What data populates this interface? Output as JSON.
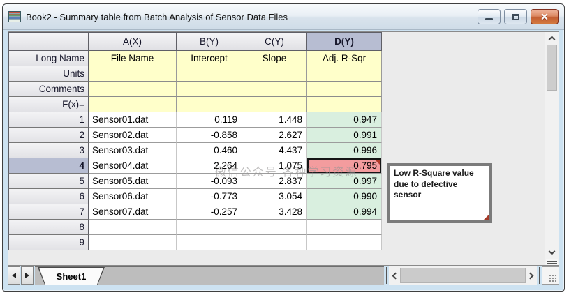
{
  "window": {
    "title": "Book2 - Summary table from Batch Analysis of Sensor Data Files",
    "control_icons": [
      "minimize",
      "restore",
      "close"
    ],
    "close_glyph": "✕"
  },
  "table": {
    "column_headers": [
      "A(X)",
      "B(Y)",
      "C(Y)",
      "D(Y)"
    ],
    "selected_column": "D(Y)",
    "row_label_header": "",
    "label_rows": [
      {
        "label": "Long Name",
        "values": [
          "File Name",
          "Intercept",
          "Slope",
          "Adj. R-Sqr"
        ]
      },
      {
        "label": "Units",
        "values": [
          "",
          "",
          "",
          ""
        ]
      },
      {
        "label": "Comments",
        "values": [
          "",
          "",
          "",
          ""
        ]
      },
      {
        "label": "F(x)=",
        "values": [
          "",
          "",
          "",
          ""
        ]
      }
    ],
    "data_rows": [
      {
        "row": "1",
        "values": [
          "Sensor01.dat",
          "0.119",
          "1.448",
          "0.947"
        ],
        "selected": false
      },
      {
        "row": "2",
        "values": [
          "Sensor02.dat",
          "-0.858",
          "2.627",
          "0.991"
        ],
        "selected": false
      },
      {
        "row": "3",
        "values": [
          "Sensor03.dat",
          "0.460",
          "4.437",
          "0.996"
        ],
        "selected": false
      },
      {
        "row": "4",
        "values": [
          "Sensor04.dat",
          "2.264",
          "1.075",
          "0.795"
        ],
        "selected": true
      },
      {
        "row": "5",
        "values": [
          "Sensor05.dat",
          "-0.093",
          "2.837",
          "0.997"
        ],
        "selected": false
      },
      {
        "row": "6",
        "values": [
          "Sensor06.dat",
          "-0.773",
          "3.054",
          "0.990"
        ],
        "selected": false
      },
      {
        "row": "7",
        "values": [
          "Sensor07.dat",
          "-0.257",
          "3.428",
          "0.994"
        ],
        "selected": false
      },
      {
        "row": "8",
        "values": [
          "",
          "",
          "",
          ""
        ],
        "selected": false
      },
      {
        "row": "9",
        "values": [
          "",
          "",
          "",
          ""
        ],
        "selected": false
      }
    ],
    "selected_cell": {
      "row": "4",
      "column": "D(Y)",
      "value": "0.795"
    }
  },
  "comment": {
    "text": "Low R-Square value due to defective sensor"
  },
  "watermark": {
    "text": "微信公众号 各种学习资源"
  },
  "sheet_bar": {
    "active_tab": "Sheet1"
  },
  "icons": {
    "window_icon": "worksheet-grid",
    "tab_scroll_left": "left-triangle",
    "tab_scroll_right": "right-triangle",
    "scroll_up": "chevron-up",
    "scroll_down": "chevron-down",
    "scroll_left": "chevron-left",
    "scroll_right": "chevron-right",
    "comment_indicator": "red-corner-triangle",
    "resize_grip": "dot-grid"
  },
  "colors": {
    "highlight_red": "#f39c9e",
    "highlight_green": "#d9efdf",
    "label_yellow": "#ffffca",
    "selected_header": "#b7bdd2",
    "close_button": "#c45f33",
    "frame_blue": "#cde2f1"
  }
}
